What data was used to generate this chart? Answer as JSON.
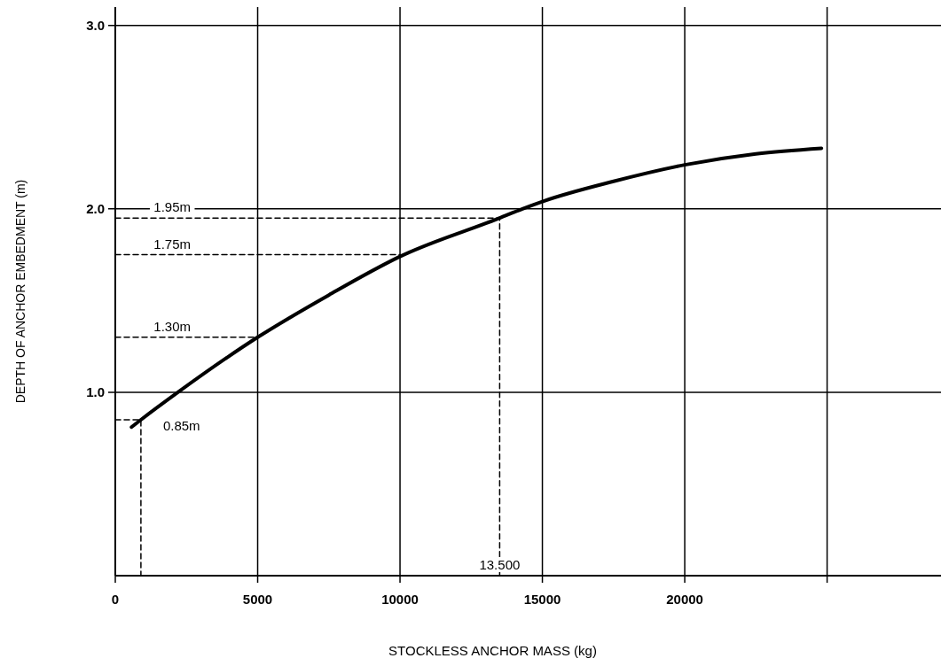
{
  "chart_data": {
    "type": "line",
    "xlabel": "STOCKLESS ANCHOR MASS (kg)",
    "ylabel": "DEPTH OF ANCHOR EMBEDMENT (m)",
    "xlim": [
      0,
      29000
    ],
    "xticks": [
      0,
      5000,
      10000,
      15000,
      20000,
      {
        "value": 25000,
        "label": null
      }
    ],
    "ylim": [
      0,
      3.1
    ],
    "yticks": [
      {
        "value": 1,
        "label": "1.0"
      },
      {
        "value": 2,
        "label": "2.0"
      },
      {
        "value": 3,
        "label": "3.0"
      }
    ],
    "grid": true,
    "marker": "none",
    "series": [
      {
        "color": "#000000",
        "line_style": "solid",
        "x": [
          570,
          900,
          2200,
          5000,
          7500,
          10000,
          13500,
          14300,
          15000,
          17500,
          20000,
          22500,
          24800
        ],
        "values": [
          0.81,
          0.85,
          1.0,
          1.3,
          1.53,
          1.74,
          1.95,
          2.0,
          2.04,
          2.15,
          2.24,
          2.3,
          2.33
        ]
      },
      {
        "color": "#000000",
        "line_style": "dashed",
        "x": [
          0,
          13500,
          13500
        ],
        "values": [
          1.95,
          1.95,
          0
        ]
      },
      {
        "color": "#000000",
        "line_style": "dashed",
        "x": [
          0,
          10000
        ],
        "values": [
          1.75,
          1.75
        ]
      },
      {
        "color": "#000000",
        "line_style": "dashed",
        "x": [
          0,
          5000
        ],
        "values": [
          1.3,
          1.3
        ]
      },
      {
        "color": "#000000",
        "line_style": "dashed",
        "x": [
          0,
          900,
          900
        ],
        "values": [
          0.85,
          0.85,
          0
        ]
      }
    ],
    "annotations": [
      {
        "text": "1.95m",
        "x": 2000,
        "y": 1.95
      },
      {
        "text": "1.75m",
        "x": 2000,
        "y": 1.75
      },
      {
        "text": "1.30m",
        "x": 2000,
        "y": 1.3
      },
      {
        "text": "0.85m",
        "x": 900,
        "y": 0.85
      },
      {
        "text": "13.500",
        "x": 13500,
        "y": 0
      }
    ]
  }
}
